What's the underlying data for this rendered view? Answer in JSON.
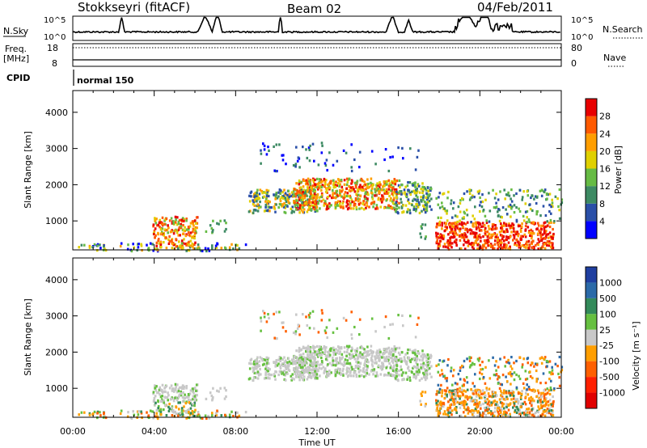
{
  "header": {
    "station": "Stokkseyri (fitACF)",
    "beam": "Beam 02",
    "date": "04/Feb/2011"
  },
  "summary": {
    "nsky_label": "N.Sky",
    "nsky_ticks": [
      "10^5",
      "10^0"
    ],
    "nsearch_label": "N.Search",
    "nsearch_ticks": [
      "10^5",
      "10^0"
    ],
    "freq_label_line1": "Freq.",
    "freq_label_line2": "[MHz]",
    "freq_ticks": [
      "18",
      "8"
    ],
    "nave_label": "Nave",
    "nave_ticks": [
      "80",
      "0"
    ],
    "cpid_label": "CPID",
    "cpid_text": "normal 150"
  },
  "colors": {
    "power_scale": [
      "#0000ff",
      "#2a4fa8",
      "#3d8a63",
      "#66bb44",
      "#e0d000",
      "#ff9e00",
      "#ff5a00",
      "#e80000"
    ],
    "velocity_scale": [
      "#1f3fa0",
      "#2b6aa8",
      "#338a5a",
      "#66c040",
      "#c8c8c8",
      "#ff9e00",
      "#ff6000",
      "#ff2000",
      "#e00000"
    ]
  },
  "chart_data": [
    {
      "type": "heatmap",
      "ylabel": "Slant Range [km]",
      "xlabel": "",
      "x_ticks": [
        "00:00",
        "04:00",
        "08:00",
        "12:00",
        "16:00",
        "20:00",
        "00:00"
      ],
      "x_range_hours": [
        0,
        24
      ],
      "y_ticks": [
        1000,
        2000,
        3000,
        4000
      ],
      "ylim": [
        200,
        4600
      ],
      "colorbar_label": "Power [dB]",
      "colorbar_ticks": [
        28,
        24,
        20,
        16,
        12,
        8,
        4
      ]
    },
    {
      "type": "heatmap",
      "ylabel": "Slant Range [km]",
      "xlabel": "Time UT",
      "x_ticks": [
        "00:00",
        "04:00",
        "08:00",
        "12:00",
        "16:00",
        "20:00",
        "00:00"
      ],
      "x_range_hours": [
        0,
        24
      ],
      "y_ticks": [
        1000,
        2000,
        3000,
        4000
      ],
      "ylim": [
        200,
        4600
      ],
      "colorbar_label": "Velocity [m s⁻¹]",
      "colorbar_ticks": [
        1000,
        500,
        100,
        25,
        -25,
        -100,
        -500,
        -1000
      ]
    }
  ]
}
